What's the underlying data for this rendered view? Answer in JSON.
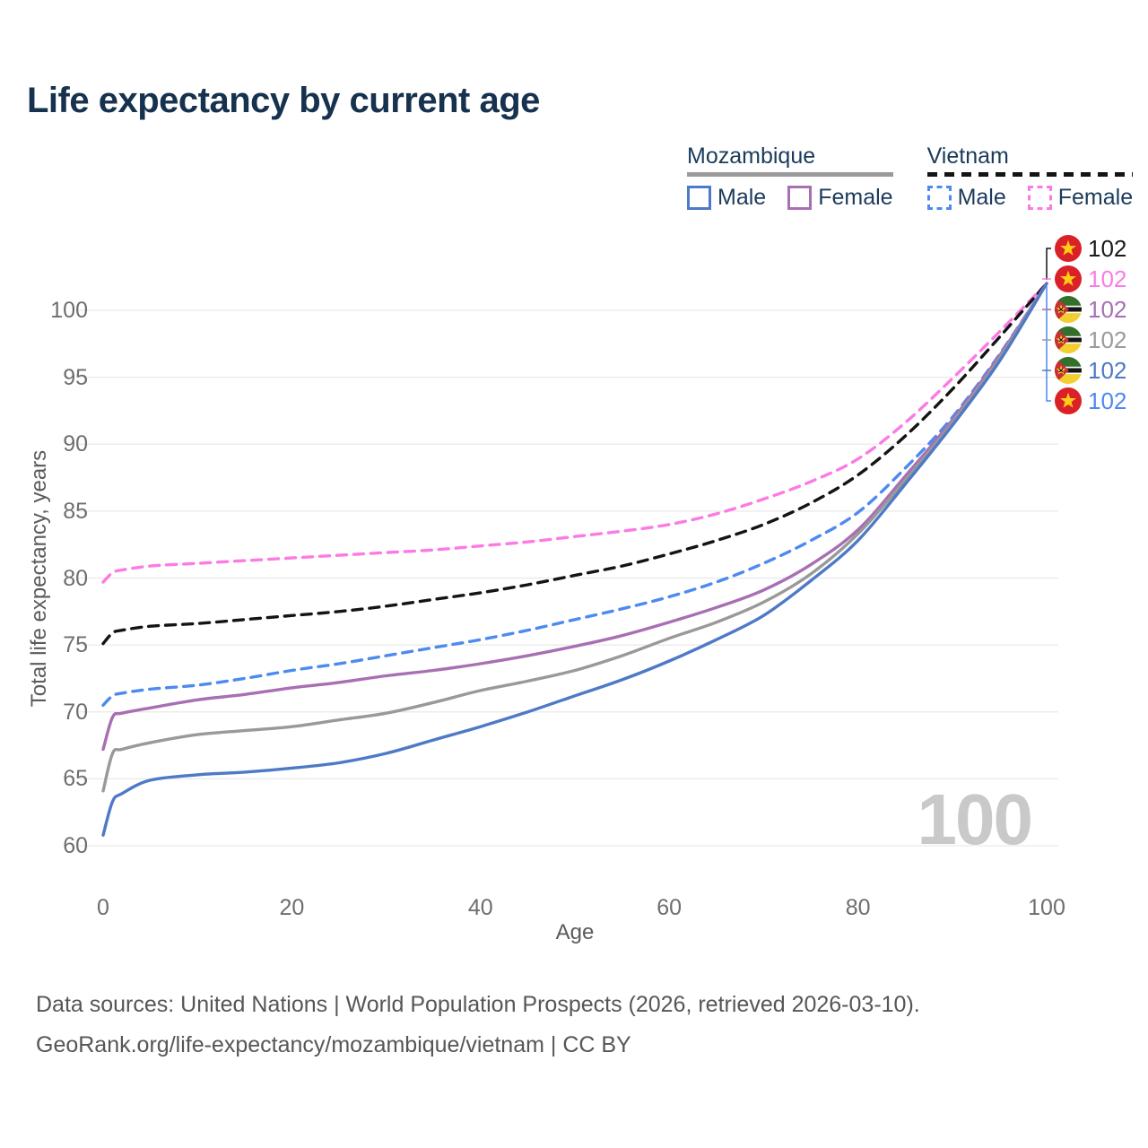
{
  "title": "Life expectancy by current age",
  "legend": {
    "groups": [
      {
        "country": "Mozambique",
        "line_style": "solid",
        "underline_color": "#9a9a9a",
        "items": [
          {
            "label": "Male",
            "color": "#4e79c7"
          },
          {
            "label": "Female",
            "color": "#a86fb3"
          }
        ]
      },
      {
        "country": "Vietnam",
        "line_style": "dashed",
        "underline_color": "#141414",
        "items": [
          {
            "label": "Male",
            "color": "#4d8af0"
          },
          {
            "label": "Female",
            "color": "#fb7be5"
          }
        ]
      }
    ]
  },
  "chart_data": {
    "type": "line",
    "title": "Life expectancy by current age",
    "xlabel": "Age",
    "ylabel": "Total life expectancy, years",
    "watermark": "100",
    "x_ticks": [
      0,
      20,
      40,
      60,
      80,
      100
    ],
    "y_ticks": [
      60,
      65,
      70,
      75,
      80,
      85,
      90,
      95,
      100
    ],
    "xlim": [
      0,
      100
    ],
    "ylim": [
      60,
      102.5
    ],
    "grid": "horizontal",
    "legend_position": "top-right",
    "x": [
      0,
      1,
      2,
      5,
      10,
      15,
      20,
      25,
      30,
      35,
      40,
      45,
      50,
      55,
      60,
      65,
      70,
      75,
      80,
      85,
      90,
      95,
      100
    ],
    "series": [
      {
        "id": "vietnam-female",
        "name": "Vietnam Female",
        "color": "#fb7be5",
        "dash": true,
        "values": [
          79.7,
          80.4,
          80.6,
          80.9,
          81.1,
          81.3,
          81.5,
          81.7,
          81.9,
          82.1,
          82.4,
          82.7,
          83.1,
          83.5,
          84.0,
          84.8,
          85.9,
          87.2,
          88.9,
          91.6,
          94.9,
          98.4,
          102
        ]
      },
      {
        "id": "vietnam-total",
        "name": "Vietnam",
        "color": "#141414",
        "dash": true,
        "values": [
          75.1,
          75.9,
          76.1,
          76.4,
          76.6,
          76.9,
          77.2,
          77.5,
          77.9,
          78.4,
          78.9,
          79.5,
          80.2,
          80.9,
          81.8,
          82.8,
          84.0,
          85.6,
          87.7,
          90.6,
          94.1,
          98.0,
          102
        ]
      },
      {
        "id": "vietnam-male",
        "name": "Vietnam Male",
        "color": "#4d8af0",
        "dash": true,
        "values": [
          70.5,
          71.2,
          71.4,
          71.7,
          72.0,
          72.5,
          73.1,
          73.6,
          74.2,
          74.8,
          75.4,
          76.1,
          76.9,
          77.7,
          78.6,
          79.7,
          81.1,
          82.8,
          84.9,
          88.2,
          92.0,
          96.7,
          102
        ]
      },
      {
        "id": "mozambique-female",
        "name": "Mozambique Female",
        "color": "#a86fb3",
        "dash": false,
        "values": [
          67.2,
          69.6,
          69.9,
          70.3,
          70.9,
          71.3,
          71.8,
          72.2,
          72.7,
          73.1,
          73.6,
          74.2,
          74.9,
          75.7,
          76.7,
          77.8,
          79.1,
          81.0,
          83.6,
          87.6,
          91.8,
          96.6,
          102
        ]
      },
      {
        "id": "mozambique-total",
        "name": "Mozambique",
        "color": "#999999",
        "dash": false,
        "values": [
          64.1,
          66.9,
          67.2,
          67.7,
          68.3,
          68.6,
          68.9,
          69.4,
          69.9,
          70.7,
          71.6,
          72.3,
          73.1,
          74.2,
          75.5,
          76.7,
          78.2,
          80.3,
          83.3,
          87.3,
          91.6,
          96.4,
          102
        ]
      },
      {
        "id": "mozambique-male",
        "name": "Mozambique Male",
        "color": "#4e79c7",
        "dash": false,
        "values": [
          60.8,
          63.3,
          63.9,
          64.9,
          65.3,
          65.5,
          65.8,
          66.2,
          66.9,
          67.9,
          68.9,
          70.0,
          71.2,
          72.4,
          73.8,
          75.4,
          77.2,
          79.8,
          82.8,
          87.0,
          91.4,
          96.2,
          102
        ]
      }
    ],
    "end_labels": [
      {
        "series": "vietnam-total",
        "flag": "vietnam",
        "value": "102",
        "color": "#1a1a1a"
      },
      {
        "series": "vietnam-female",
        "flag": "vietnam",
        "value": "102",
        "color": "#fb7be5"
      },
      {
        "series": "mozambique-female",
        "flag": "mozambique",
        "value": "102",
        "color": "#a86fb3"
      },
      {
        "series": "mozambique-total",
        "flag": "mozambique",
        "value": "102",
        "color": "#9a9a9a"
      },
      {
        "series": "mozambique-male",
        "flag": "mozambique",
        "value": "102",
        "color": "#4e79c7"
      },
      {
        "series": "vietnam-male",
        "flag": "vietnam",
        "value": "102",
        "color": "#4d8af0"
      }
    ]
  },
  "footer": {
    "line1": "Data sources: United Nations | World Population Prospects (2026, retrieved 2026-03-10).",
    "line2": "GeoRank.org/life-expectancy/mozambique/vietnam | CC BY"
  }
}
